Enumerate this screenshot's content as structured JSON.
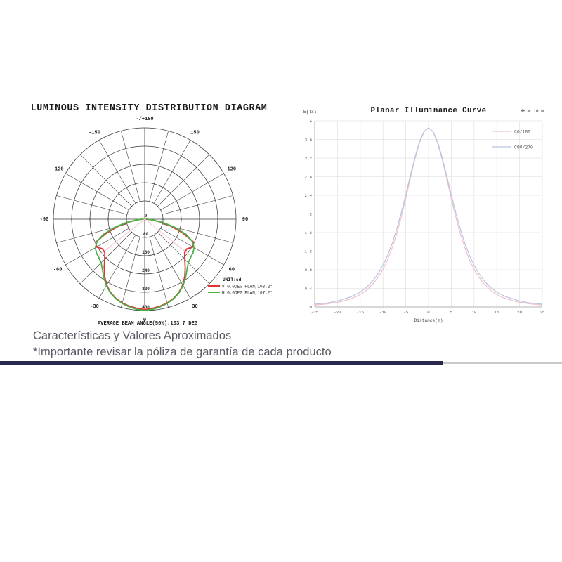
{
  "polar_figure": {
    "title": "LUMINOUS INTENSITY DISTRIBUTION DIAGRAM",
    "average_text": "AVERAGE BEAM ANGLE(50%):103.7 DEG",
    "legend": {
      "unit_label": "UNIT:cd"
    },
    "chart_data": {
      "type": "polar_line",
      "unit": "cd",
      "radial_ticks": [
        0,
        80,
        160,
        240,
        320,
        400
      ],
      "radial_max": 400,
      "angle_labels": [
        {
          "text": "-/+180",
          "angle": 180
        },
        {
          "text": "150",
          "angle": 150
        },
        {
          "text": "120",
          "angle": 120
        },
        {
          "text": "90",
          "angle": 90
        },
        {
          "text": "60",
          "angle": 60
        },
        {
          "text": "30",
          "angle": 30
        },
        {
          "text": "0",
          "angle": 0
        },
        {
          "text": "-30",
          "angle": -30
        },
        {
          "text": "-60",
          "angle": -60
        },
        {
          "text": "-90",
          "angle": -90
        },
        {
          "text": "-120",
          "angle": -120
        },
        {
          "text": "-150",
          "angle": -150
        }
      ],
      "beam_angle_lines_deg": [
        -51.6,
        51.6
      ],
      "beam_line_color": "#f3d4d4",
      "grid_color": "#3a3a3a",
      "series": [
        {
          "name": "V 0.0DEG PLAN,103.2°",
          "color": "#e23232",
          "angles": [
            -90,
            -85,
            -80,
            -75,
            -70,
            -65,
            -60,
            -55,
            -50,
            -45,
            -40,
            -35,
            -30,
            -25,
            -20,
            -15,
            -10,
            -5,
            0,
            5,
            10,
            15,
            20,
            25,
            30,
            35,
            40,
            45,
            50,
            55,
            60,
            65,
            70,
            75,
            80,
            85,
            90
          ],
          "values": [
            8,
            28,
            68,
            120,
            178,
            236,
            244,
            226,
            228,
            248,
            276,
            306,
            333,
            354,
            369,
            380,
            387,
            392,
            396,
            392,
            387,
            380,
            369,
            354,
            333,
            306,
            276,
            248,
            228,
            226,
            244,
            236,
            178,
            120,
            68,
            28,
            8
          ]
        },
        {
          "name": "H 0.0DEG PLAN,107.2°",
          "color": "#46b446",
          "angles": [
            -90,
            -85,
            -80,
            -75,
            -70,
            -65,
            -60,
            -55,
            -50,
            -45,
            -40,
            -35,
            -30,
            -25,
            -20,
            -15,
            -10,
            -5,
            0,
            5,
            10,
            15,
            20,
            25,
            30,
            35,
            40,
            45,
            50,
            55,
            60,
            65,
            70,
            75,
            80,
            85,
            90
          ],
          "values": [
            10,
            34,
            80,
            135,
            192,
            230,
            250,
            258,
            262,
            270,
            288,
            312,
            336,
            356,
            371,
            382,
            390,
            396,
            400,
            396,
            390,
            382,
            371,
            356,
            336,
            312,
            288,
            270,
            262,
            258,
            250,
            230,
            192,
            135,
            80,
            34,
            10
          ]
        }
      ]
    }
  },
  "illuminance_figure": {
    "title": "Planar Illuminance Curve",
    "corner_label": "MH = 10 m",
    "chart_data": {
      "type": "line",
      "title": "Planar Illuminance Curve",
      "xlabel": "Distance(m)",
      "ylabel": "E(lx)",
      "xlim": [
        -25,
        25
      ],
      "ylim": [
        0,
        4
      ],
      "xticks": [
        -25,
        -20,
        -15,
        -10,
        -5,
        0,
        5,
        10,
        15,
        20,
        25
      ],
      "yticks": [
        0,
        0.4,
        0.8,
        1.2,
        1.6,
        2,
        2.4,
        2.8,
        3.2,
        3.6,
        4
      ],
      "grid": true,
      "grid_color": "#e4e4e4",
      "legend_position": "top-right",
      "x": [
        -25,
        -24,
        -23,
        -22,
        -21,
        -20,
        -19,
        -18,
        -17,
        -16,
        -15,
        -14,
        -13,
        -12,
        -11,
        -10,
        -9,
        -8,
        -7,
        -6,
        -5,
        -4,
        -3,
        -2,
        -1,
        0,
        1,
        2,
        3,
        4,
        5,
        6,
        7,
        8,
        9,
        10,
        11,
        12,
        13,
        14,
        15,
        16,
        17,
        18,
        19,
        20,
        21,
        22,
        23,
        24,
        25
      ],
      "series": [
        {
          "name": "C0/180",
          "color": "#efc0cb",
          "values": [
            0.04,
            0.05,
            0.06,
            0.07,
            0.09,
            0.1,
            0.12,
            0.15,
            0.18,
            0.22,
            0.27,
            0.33,
            0.42,
            0.52,
            0.65,
            0.81,
            1.01,
            1.27,
            1.57,
            1.93,
            2.33,
            2.76,
            3.17,
            3.52,
            3.76,
            3.85,
            3.76,
            3.52,
            3.17,
            2.76,
            2.33,
            1.93,
            1.57,
            1.27,
            1.01,
            0.81,
            0.65,
            0.52,
            0.42,
            0.33,
            0.27,
            0.22,
            0.18,
            0.15,
            0.12,
            0.1,
            0.09,
            0.07,
            0.06,
            0.05,
            0.04
          ]
        },
        {
          "name": "C90/270",
          "color": "#b9c4de",
          "values": [
            0.06,
            0.07,
            0.08,
            0.09,
            0.11,
            0.13,
            0.16,
            0.19,
            0.22,
            0.27,
            0.32,
            0.39,
            0.48,
            0.59,
            0.73,
            0.9,
            1.11,
            1.36,
            1.67,
            2.02,
            2.41,
            2.82,
            3.21,
            3.55,
            3.77,
            3.85,
            3.77,
            3.55,
            3.21,
            2.82,
            2.41,
            2.02,
            1.67,
            1.36,
            1.11,
            0.9,
            0.73,
            0.59,
            0.48,
            0.39,
            0.32,
            0.27,
            0.22,
            0.19,
            0.16,
            0.13,
            0.11,
            0.09,
            0.08,
            0.07,
            0.06
          ]
        }
      ]
    }
  },
  "footer": {
    "line1": "Características y Valores Aproximados",
    "line2": "*Importante revisar la póliza de garantía de cada producto",
    "divider": {
      "primary_color": "#29294f",
      "secondary_color": "#c9c9c9"
    }
  }
}
